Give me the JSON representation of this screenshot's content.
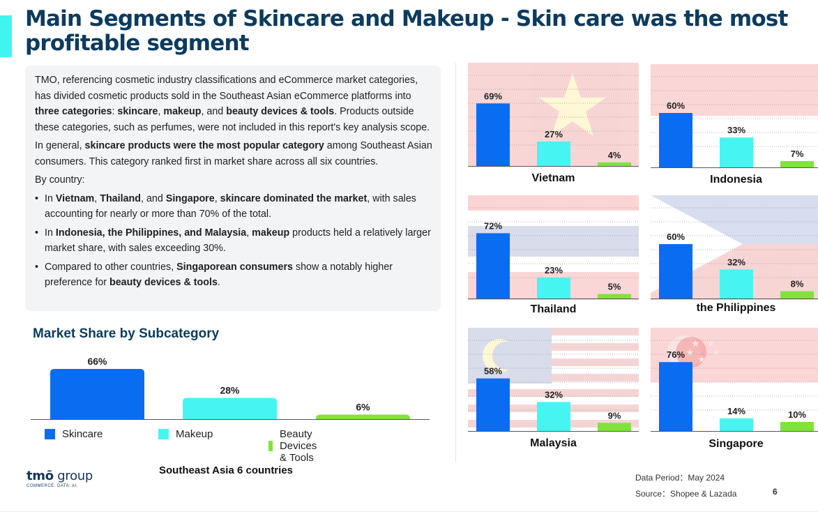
{
  "title": "Main Segments of Skincare and Makeup - Skin care was the most profitable segment",
  "intro": {
    "p1": [
      {
        "t": "TMO, referencing cosmetic industry classifications and eCommerce market categories, has divided cosmetic products sold in the Southeast Asian eCommerce platforms into ",
        "b": false
      },
      {
        "t": "three categories",
        "b": true
      },
      {
        "t": ": ",
        "b": false
      },
      {
        "t": "skincare",
        "b": true
      },
      {
        "t": ", ",
        "b": false
      },
      {
        "t": "makeup",
        "b": true
      },
      {
        "t": ", and ",
        "b": false
      },
      {
        "t": "beauty devices & tools",
        "b": true
      },
      {
        "t": ". Products outside these categories, such as perfumes, were not included in this report's key analysis scope.",
        "b": false
      }
    ],
    "p2": [
      {
        "t": "In general, ",
        "b": false
      },
      {
        "t": "skincare products were the most popular category",
        "b": true
      },
      {
        "t": " among Southeast Asian consumers. This category ranked first in market share across all six countries.",
        "b": false
      }
    ],
    "p3": [
      {
        "t": "By country:",
        "b": false
      }
    ],
    "bullets": [
      [
        {
          "t": "In ",
          "b": false
        },
        {
          "t": "Vietnam",
          "b": true
        },
        {
          "t": ", ",
          "b": false
        },
        {
          "t": "Thailand",
          "b": true
        },
        {
          "t": ", and ",
          "b": false
        },
        {
          "t": "Singapore",
          "b": true
        },
        {
          "t": ", ",
          "b": false
        },
        {
          "t": "skincare dominated the market",
          "b": true
        },
        {
          "t": ", with sales accounting for nearly or more than 70% of the total.",
          "b": false
        }
      ],
      [
        {
          "t": "In ",
          "b": false
        },
        {
          "t": "Indonesia, the Philippines, and Malaysia",
          "b": true
        },
        {
          "t": ", ",
          "b": false
        },
        {
          "t": "makeup",
          "b": true
        },
        {
          "t": " products held a relatively larger market share, with sales exceeding 30%.",
          "b": false
        }
      ],
      [
        {
          "t": "Compared to other countries, ",
          "b": false
        },
        {
          "t": "Singaporean consumers",
          "b": true
        },
        {
          "t": " show a notably higher preference for ",
          "b": false
        },
        {
          "t": "beauty devices & tools",
          "b": true
        },
        {
          "t": ".",
          "b": false
        }
      ]
    ]
  },
  "subtitle": "Market Share by Subcategory",
  "region_label": "Southeast Asia 6 countries",
  "colors": {
    "skincare": "#0a6cf0",
    "makeup": "#46f5f2",
    "tools": "#7fe33a",
    "title": "#0c3b5e"
  },
  "legend": [
    "Skincare",
    "Makeup",
    "Beauty Devices & Tools"
  ],
  "chart_data": [
    {
      "type": "bar",
      "categories": [
        "Skincare",
        "Makeup",
        "Beauty Devices & Tools"
      ],
      "values": [
        66,
        28,
        6
      ],
      "value_labels": [
        "66%",
        "28%",
        "6%"
      ]
    },
    {
      "type": "bar",
      "title": "Vietnam",
      "categories": [
        "Skincare",
        "Makeup",
        "Beauty Devices & Tools"
      ],
      "values": [
        69,
        27,
        4
      ],
      "value_labels": [
        "69%",
        "27%",
        "4%"
      ]
    },
    {
      "type": "bar",
      "title": "Indonesia",
      "categories": [
        "Skincare",
        "Makeup",
        "Beauty Devices & Tools"
      ],
      "values": [
        60,
        33,
        7
      ],
      "value_labels": [
        "60%",
        "33%",
        "7%"
      ]
    },
    {
      "type": "bar",
      "title": "Thailand",
      "categories": [
        "Skincare",
        "Makeup",
        "Beauty Devices & Tools"
      ],
      "values": [
        72,
        23,
        5
      ],
      "value_labels": [
        "72%",
        "23%",
        "5%"
      ]
    },
    {
      "type": "bar",
      "title": "the Philippines",
      "categories": [
        "Skincare",
        "Makeup",
        "Beauty Devices & Tools"
      ],
      "values": [
        60,
        32,
        8
      ],
      "value_labels": [
        "60%",
        "32%",
        "8%"
      ]
    },
    {
      "type": "bar",
      "title": "Malaysia",
      "categories": [
        "Skincare",
        "Makeup",
        "Beauty Devices & Tools"
      ],
      "values": [
        58,
        32,
        9
      ],
      "value_labels": [
        "58%",
        "32%",
        "9%"
      ]
    },
    {
      "type": "bar",
      "title": "Singapore",
      "categories": [
        "Skincare",
        "Makeup",
        "Beauty Devices & Tools"
      ],
      "values": [
        76,
        14,
        10
      ],
      "value_labels": [
        "76%",
        "14%",
        "10%"
      ]
    }
  ],
  "logo": {
    "brand": "tmō",
    "word": "group",
    "tagline": "COMMERCE. DATA. AI."
  },
  "footer": {
    "period": "Data Period：May 2024",
    "source": "Source：Shopee & Lazada",
    "page": "6"
  }
}
